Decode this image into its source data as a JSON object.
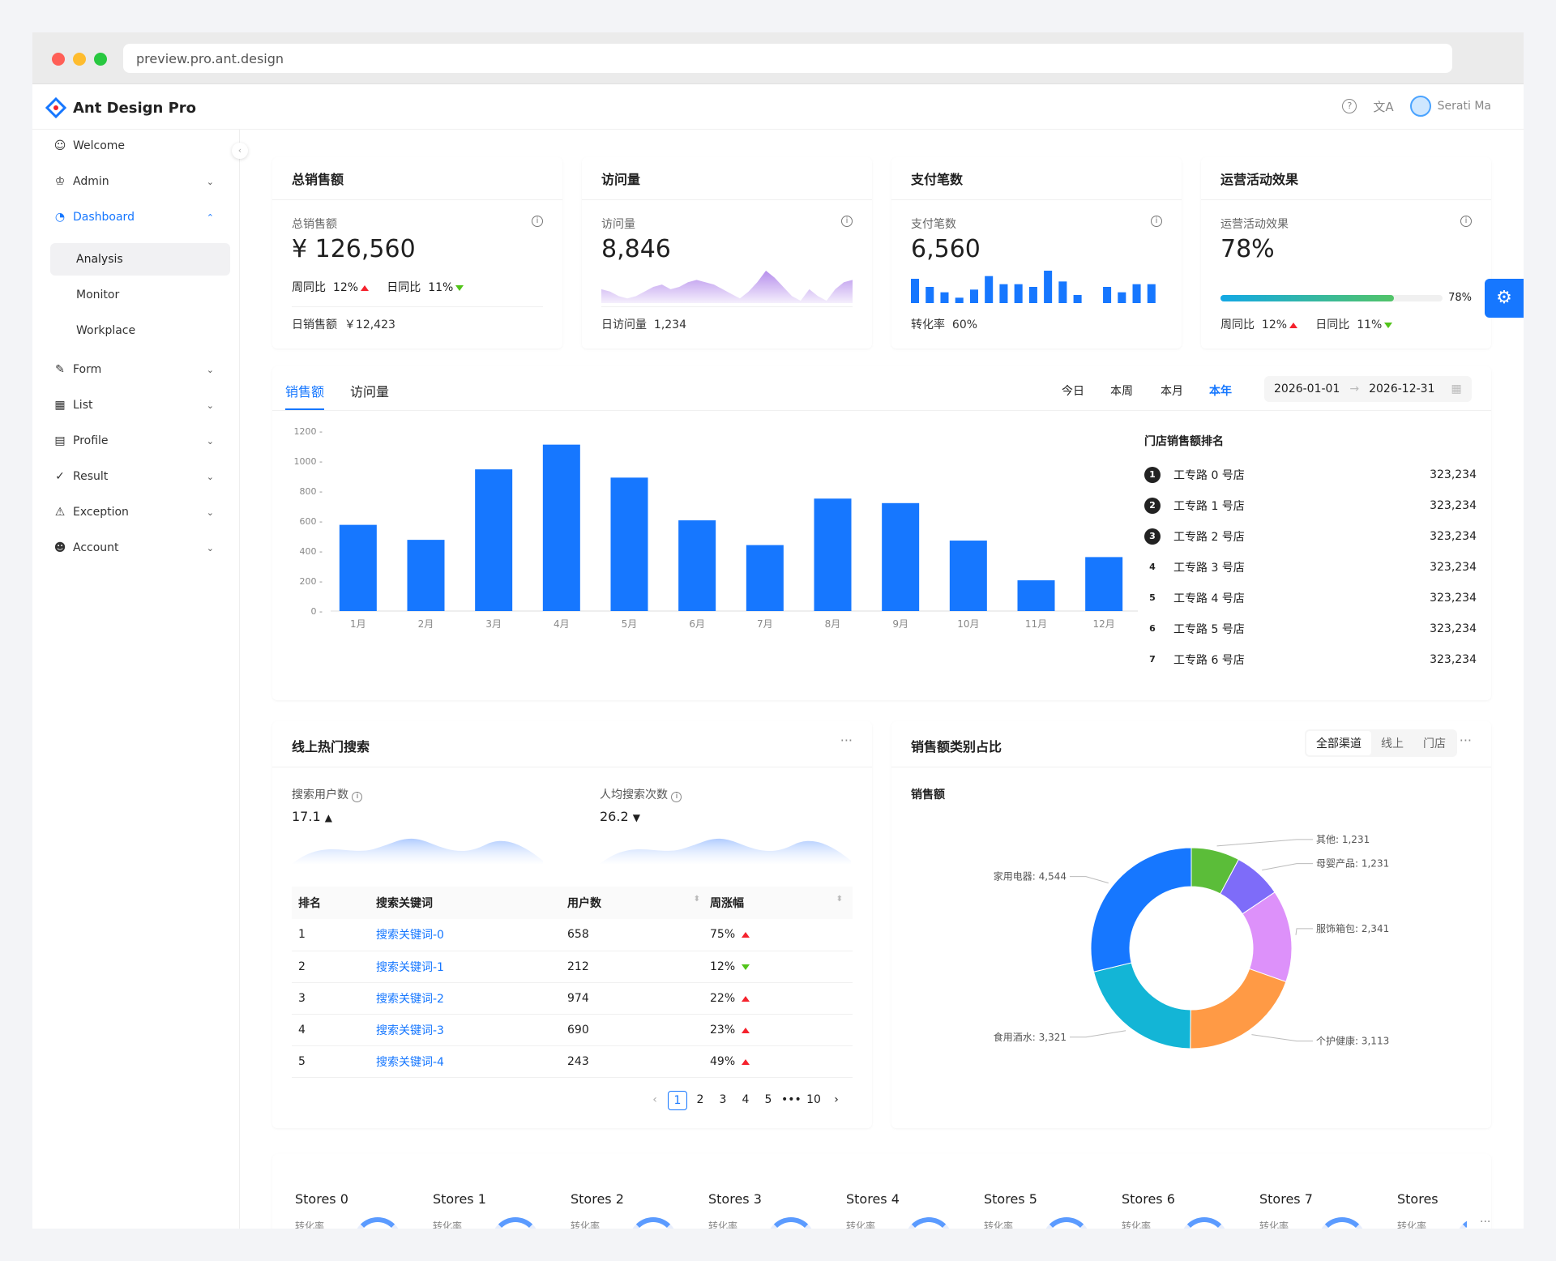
{
  "browser": {
    "url": "preview.pro.ant.design"
  },
  "app": {
    "title": "Ant Design Pro",
    "user": "Serati Ma"
  },
  "sidebar": {
    "items": [
      {
        "label": "Welcome",
        "icon": "smile-icon"
      },
      {
        "label": "Admin",
        "icon": "crown-icon"
      },
      {
        "label": "Dashboard",
        "icon": "dashboard-icon"
      },
      {
        "label": "Analysis"
      },
      {
        "label": "Monitor"
      },
      {
        "label": "Workplace"
      },
      {
        "label": "Form",
        "icon": "form-icon"
      },
      {
        "label": "List",
        "icon": "table-icon"
      },
      {
        "label": "Profile",
        "icon": "profile-icon"
      },
      {
        "label": "Result",
        "icon": "check-circle-icon"
      },
      {
        "label": "Exception",
        "icon": "warning-icon"
      },
      {
        "label": "Account",
        "icon": "user-icon"
      }
    ]
  },
  "kpi": [
    {
      "title": "总销售额",
      "label": "总销售额",
      "value": "¥ 126,560",
      "wk": "周同比",
      "wk_val": "12%",
      "day": "日同比",
      "day_val": "11%",
      "foot_label": "日销售额",
      "foot_val": "￥12,423"
    },
    {
      "title": "访问量",
      "label": "访问量",
      "value": "8,846",
      "foot_label": "日访问量",
      "foot_val": "1,234"
    },
    {
      "title": "支付笔数",
      "label": "支付笔数",
      "value": "6,560",
      "foot_label": "转化率",
      "foot_val": "60%"
    },
    {
      "title": "运营活动效果",
      "label": "运营活动效果",
      "value": "78%",
      "progress": 0.78,
      "progress_label": "78%",
      "wk": "周同比",
      "wk_val": "12%",
      "day": "日同比",
      "day_val": "11%"
    }
  ],
  "sales": {
    "tabs": [
      "销售额",
      "访问量"
    ],
    "ranges": [
      "今日",
      "本周",
      "本月",
      "本年"
    ],
    "date_from": "2026-01-01",
    "date_to": "2026-12-31",
    "rank_title": "门店销售额排名",
    "ranking": [
      {
        "n": "1",
        "name": "工专路 0 号店",
        "value": "323,234"
      },
      {
        "n": "2",
        "name": "工专路 1 号店",
        "value": "323,234"
      },
      {
        "n": "3",
        "name": "工专路 2 号店",
        "value": "323,234"
      },
      {
        "n": "4",
        "name": "工专路 3 号店",
        "value": "323,234"
      },
      {
        "n": "5",
        "name": "工专路 4 号店",
        "value": "323,234"
      },
      {
        "n": "6",
        "name": "工专路 5 号店",
        "value": "323,234"
      },
      {
        "n": "7",
        "name": "工专路 6 号店",
        "value": "323,234"
      }
    ]
  },
  "chart_data": [
    {
      "type": "bar",
      "categories": [
        "1月",
        "2月",
        "3月",
        "4月",
        "5月",
        "6月",
        "7月",
        "8月",
        "9月",
        "10月",
        "11月",
        "12月"
      ],
      "values": [
        575,
        475,
        945,
        1110,
        890,
        605,
        440,
        750,
        720,
        470,
        205,
        360
      ],
      "ylim": [
        0,
        1200
      ],
      "yticks": [
        0,
        200,
        400,
        600,
        800,
        1000,
        1200
      ],
      "color": "#1677ff"
    },
    {
      "type": "bar",
      "values": [
        9,
        6,
        4,
        2,
        5,
        10,
        7,
        7,
        6,
        12,
        8,
        3,
        0,
        6,
        4,
        7,
        7
      ],
      "color": "#1677ff"
    },
    {
      "type": "area",
      "values": [
        6,
        5,
        3,
        2,
        3,
        5,
        7,
        8,
        6,
        7,
        9,
        10,
        9,
        8,
        6,
        4,
        2,
        5,
        9,
        14,
        11,
        7,
        3,
        1,
        6,
        3,
        1,
        6,
        9,
        10
      ],
      "color": "#975fe4"
    },
    {
      "type": "pie",
      "slices": [
        {
          "label": "家用电器: 4,544",
          "value": 4544,
          "color": "#1677ff"
        },
        {
          "label": "食用酒水: 3,321",
          "value": 3321,
          "color": "#13b5d6"
        },
        {
          "label": "个护健康: 3,113",
          "value": 3113,
          "color": "#ff9a45"
        },
        {
          "label": "服饰箱包: 2,341",
          "value": 2341,
          "color": "#dd91fa"
        },
        {
          "label": "母婴产品: 1,231",
          "value": 1231,
          "color": "#7e6cf9"
        },
        {
          "label": "其他: 1,231",
          "value": 1231,
          "color": "#5bbd39"
        }
      ]
    }
  ],
  "search": {
    "title": "线上热门搜索",
    "users_label": "搜索用户数",
    "users_value": "17.1",
    "avg_label": "人均搜索次数",
    "avg_value": "26.2",
    "columns": [
      "排名",
      "搜索关键词",
      "用户数",
      "周涨幅"
    ],
    "rows": [
      {
        "rank": "1",
        "keyword": "搜索关键词-0",
        "users": "658",
        "change": "75%",
        "dir": "up"
      },
      {
        "rank": "2",
        "keyword": "搜索关键词-1",
        "users": "212",
        "change": "12%",
        "dir": "down"
      },
      {
        "rank": "3",
        "keyword": "搜索关键词-2",
        "users": "974",
        "change": "22%",
        "dir": "up"
      },
      {
        "rank": "4",
        "keyword": "搜索关键词-3",
        "users": "690",
        "change": "23%",
        "dir": "up"
      },
      {
        "rank": "5",
        "keyword": "搜索关键词-4",
        "users": "243",
        "change": "49%",
        "dir": "up"
      }
    ],
    "pages": [
      "1",
      "2",
      "3",
      "4",
      "5",
      "•••",
      "10"
    ]
  },
  "category": {
    "title": "销售额类别占比",
    "segments": [
      "全部渠道",
      "线上",
      "门店"
    ],
    "subtitle": "销售额"
  },
  "stores": {
    "items": [
      "Stores 0",
      "Stores 1",
      "Stores 2",
      "Stores 3",
      "Stores 4",
      "Stores 5",
      "Stores 6",
      "Stores 7",
      "Stores"
    ],
    "sub": "转化率"
  }
}
